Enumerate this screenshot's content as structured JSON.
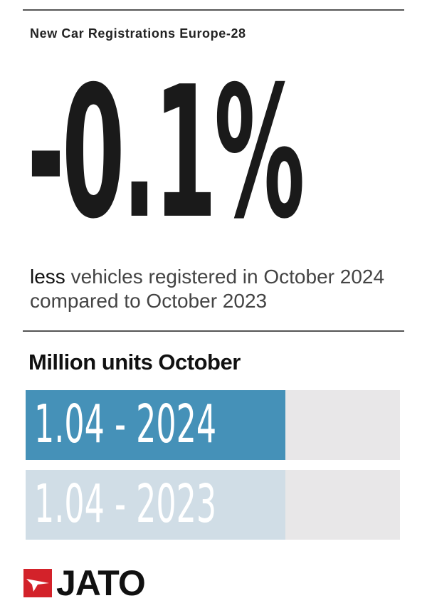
{
  "header": {
    "title": "New Car Registrations Europe-28"
  },
  "headline": {
    "value": "-0.1%"
  },
  "description": {
    "lead": "less",
    "rest": " vehicles registered in October 2024 compared to October 2023"
  },
  "chart_data": {
    "type": "bar",
    "orientation": "horizontal",
    "title": "Million units October",
    "categories": [
      "2024",
      "2023"
    ],
    "values": [
      1.04,
      1.04
    ],
    "labels": [
      "1.04 - 2024",
      "1.04 - 2023"
    ],
    "xlim": [
      0,
      1.5
    ],
    "colors": [
      "#4591b8",
      "#d0dde6"
    ],
    "track_color": "#e8e7e8",
    "grid": false
  },
  "brand": {
    "name": "JATO",
    "color": "#d3222a"
  }
}
